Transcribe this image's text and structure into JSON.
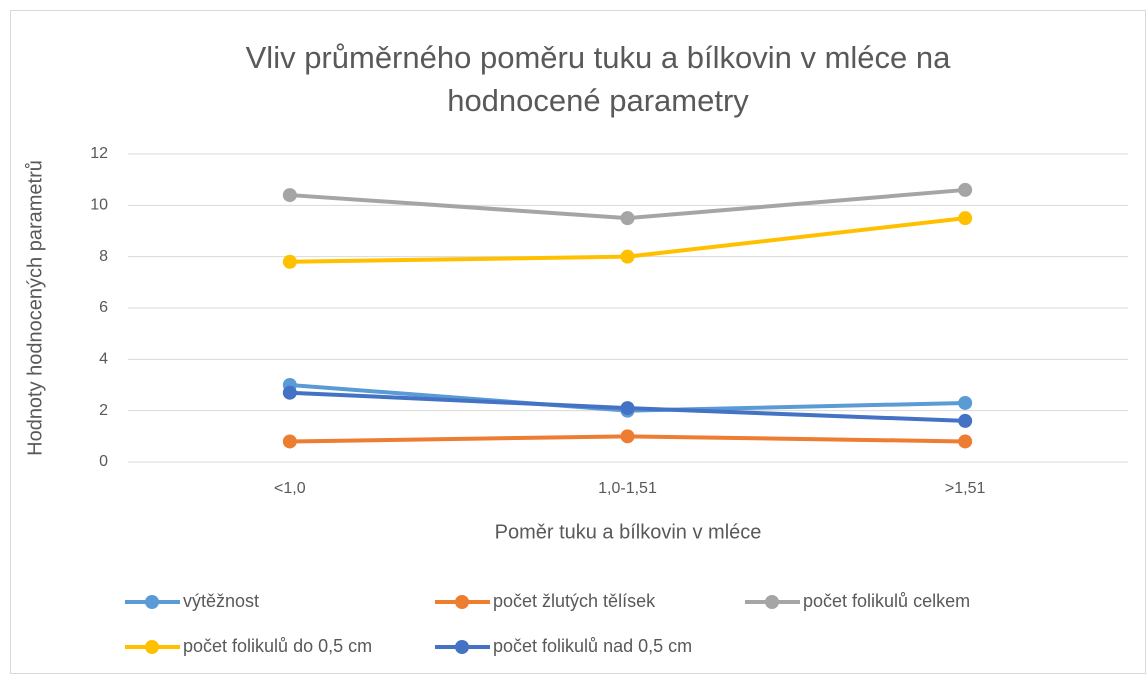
{
  "chart_data": {
    "type": "line",
    "title": [
      "Vliv průměrného poměru tuku a bílkovin v mléce na",
      "hodnocené parametry"
    ],
    "x_label": "Poměr tuku a bílkovin v mléce",
    "y_label": "Hodnoty hodnocených parametrů",
    "categories": [
      "<1,0",
      "1,0-1,51",
      ">1,51"
    ],
    "series": [
      {
        "name": "výtěžnost",
        "color": "#5b9bd5",
        "values": [
          3.0,
          2.0,
          2.3
        ]
      },
      {
        "name": "počet žlutých tělísek",
        "color": "#ed7d31",
        "values": [
          0.8,
          1.0,
          0.8
        ]
      },
      {
        "name": "počet folikulů celkem",
        "color": "#a5a5a5",
        "values": [
          10.4,
          9.5,
          10.6
        ]
      },
      {
        "name": "počet folikulů do 0,5 cm",
        "color": "#ffc000",
        "values": [
          7.8,
          8.0,
          9.5
        ]
      },
      {
        "name": "počet folikulů nad 0,5 cm",
        "color": "#4472c4",
        "values": [
          2.7,
          2.1,
          1.6
        ]
      }
    ],
    "ylim": [
      0,
      12
    ],
    "yticks": [
      0,
      2,
      4,
      6,
      8,
      10,
      12
    ],
    "grid": true,
    "legend": "bottom"
  }
}
